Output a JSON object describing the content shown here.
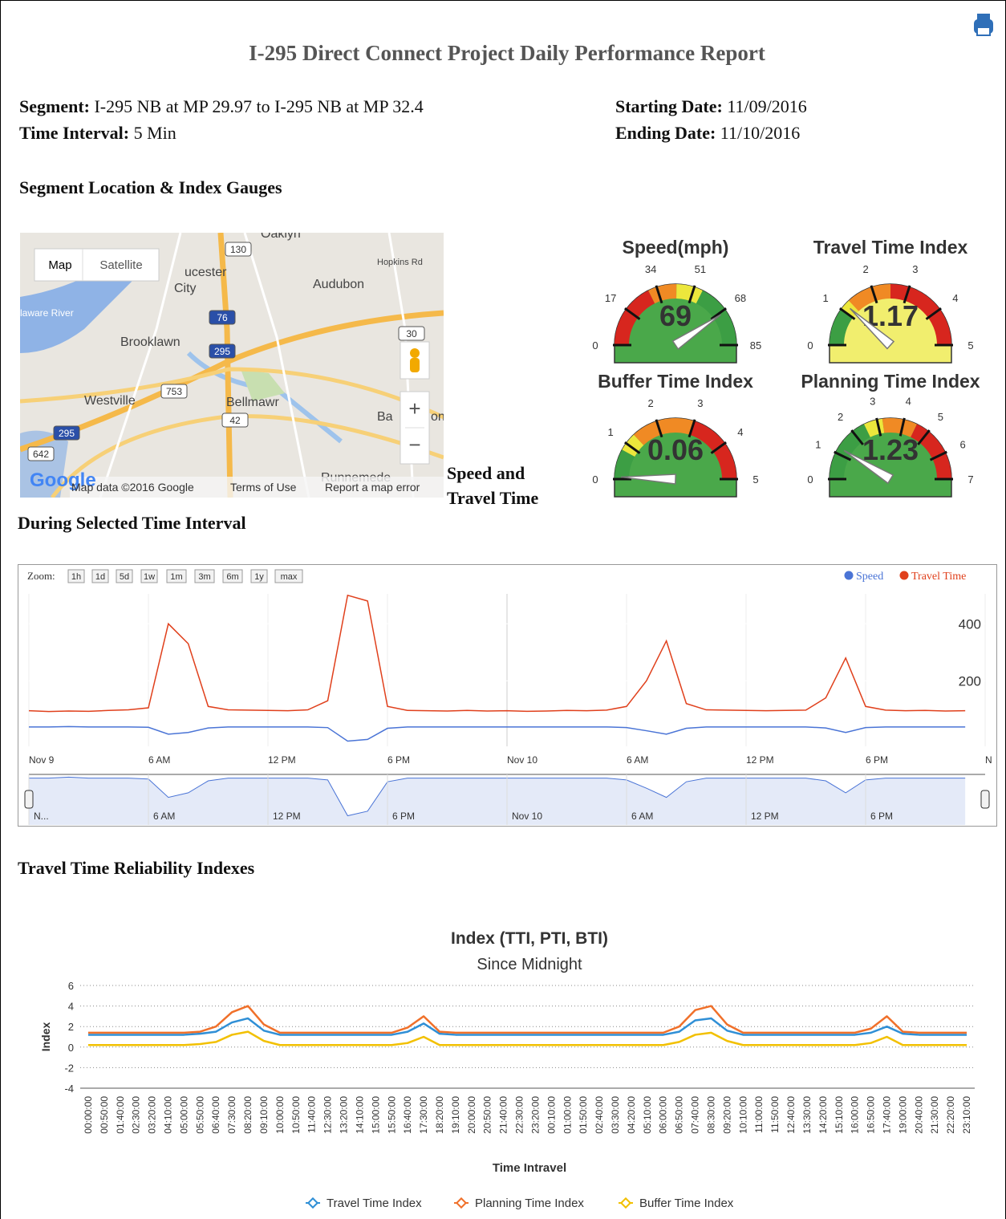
{
  "header": {
    "title": "I-295 Direct Connect Project Daily Performance Report"
  },
  "info": {
    "segment_label": "Segment:",
    "segment": "I-295 NB at MP 29.97 to I-295 NB at MP 32.4",
    "interval_label": "Time Interval:",
    "interval": "5 Min",
    "start_label": "Starting Date:",
    "start": "11/09/2016",
    "end_label": "Ending Date:",
    "end": "11/10/2016"
  },
  "sections": {
    "location": "Segment Location & Index Gauges",
    "speed_lines": [
      "Speed and",
      "Travel Time",
      "During Selected Time Interval"
    ],
    "reliability": "Travel Time Reliability Indexes"
  },
  "map": {
    "buttons": [
      "Map",
      "Satellite"
    ],
    "places": [
      "Oaklyn",
      "ucester",
      "City",
      "Audubon",
      "Hopkins Rd",
      "Brooklawn",
      "Westville",
      "Bellmawr",
      "Ba",
      "on",
      "Runnemede",
      "laware River"
    ],
    "shields": [
      "130",
      "76",
      "295",
      "30",
      "753",
      "42",
      "295",
      "642"
    ],
    "zoom": [
      "+",
      "−"
    ],
    "logo": "Google",
    "attribution": [
      "Map data ©2016 Google",
      "Terms of Use",
      "Report a map error"
    ]
  },
  "chart_data": [
    {
      "type": "gauge",
      "title": "Speed(mph)",
      "value": 69,
      "ylim": [
        0,
        85
      ],
      "yticks": [
        0,
        17,
        34,
        51,
        68,
        85
      ],
      "fill": "#4aa84a",
      "bands": [
        {
          "from": 0,
          "to": 30,
          "color": "#d7261e"
        },
        {
          "from": 30,
          "to": 43,
          "color": "#f08a24"
        },
        {
          "from": 43,
          "to": 55,
          "color": "#ece73c"
        },
        {
          "from": 55,
          "to": 85,
          "color": "#3c9e44"
        }
      ]
    },
    {
      "type": "gauge",
      "title": "Travel Time Index",
      "value": 1.17,
      "ylim": [
        0,
        5
      ],
      "yticks": [
        0,
        1,
        2,
        3,
        4,
        5
      ],
      "fill": "#f1ee6e",
      "bands": [
        {
          "from": 0,
          "to": 1,
          "color": "#3c9e44"
        },
        {
          "from": 1,
          "to": 1.3,
          "color": "#ece73c"
        },
        {
          "from": 1.3,
          "to": 2.5,
          "color": "#f08a24"
        },
        {
          "from": 2.5,
          "to": 5,
          "color": "#d7261e"
        }
      ]
    },
    {
      "type": "gauge",
      "title": "Buffer Time Index",
      "value": 0.06,
      "ylim": [
        0,
        5
      ],
      "yticks": [
        0,
        1,
        2,
        3,
        4,
        5
      ],
      "fill": "#4aa84a",
      "bands": [
        {
          "from": 0,
          "to": 0.8,
          "color": "#3c9e44"
        },
        {
          "from": 0.8,
          "to": 1.3,
          "color": "#ece73c"
        },
        {
          "from": 1.3,
          "to": 3,
          "color": "#f08a24"
        },
        {
          "from": 3,
          "to": 5,
          "color": "#d7261e"
        }
      ]
    },
    {
      "type": "gauge",
      "title": "Planning Time Index",
      "value": 1.23,
      "ylim": [
        0,
        7
      ],
      "yticks": [
        0,
        1,
        2,
        3,
        4,
        5,
        6,
        7
      ],
      "fill": "#4aa84a",
      "bands": [
        {
          "from": 0,
          "to": 2.5,
          "color": "#3c9e44"
        },
        {
          "from": 2.5,
          "to": 3.2,
          "color": "#ece73c"
        },
        {
          "from": 3.2,
          "to": 4.5,
          "color": "#f08a24"
        },
        {
          "from": 4.5,
          "to": 7,
          "color": "#d7261e"
        }
      ]
    },
    {
      "type": "stock",
      "zoom_label": "Zoom:",
      "zoom_buttons": [
        "1h",
        "1d",
        "5d",
        "1w",
        "1m",
        "3m",
        "6m",
        "1y",
        "max"
      ],
      "x": [
        0,
        1,
        2,
        3,
        4,
        5,
        6,
        7,
        8,
        9,
        10,
        11,
        12,
        13,
        14,
        15,
        16,
        17,
        18,
        19,
        20,
        21,
        22,
        23,
        24,
        25,
        26,
        27,
        28,
        29,
        30,
        31,
        32,
        33,
        34,
        35,
        36,
        37,
        38,
        39,
        40,
        41,
        42,
        43,
        44,
        45,
        46,
        47
      ],
      "xlim": [
        0,
        48
      ],
      "xticks": [
        {
          "value": 0,
          "label": "Nov 9"
        },
        {
          "value": 6,
          "label": "6 AM"
        },
        {
          "value": 12,
          "label": "12 PM"
        },
        {
          "value": 18,
          "label": "6 PM"
        },
        {
          "value": 24,
          "label": "Nov 10"
        },
        {
          "value": 30,
          "label": "6 AM"
        },
        {
          "value": 36,
          "label": "12 PM"
        },
        {
          "value": 42,
          "label": "6 PM"
        },
        {
          "value": 48,
          "label": "N"
        }
      ],
      "ylim": [
        -30,
        505
      ],
      "yticks": [
        200,
        400
      ],
      "y2lim": [
        10,
        450
      ],
      "series": [
        {
          "name": "Speed",
          "color": "#4a74d6",
          "axis": "y2",
          "values": [
            66,
            66,
            67,
            66,
            66,
            66,
            65,
            45,
            50,
            63,
            66,
            66,
            66,
            66,
            66,
            64,
            25,
            30,
            62,
            66,
            66,
            66,
            66,
            66,
            66,
            66,
            66,
            66,
            66,
            66,
            64,
            55,
            45,
            62,
            66,
            66,
            66,
            66,
            66,
            66,
            63,
            50,
            64,
            66,
            66,
            66,
            66,
            66
          ]
        },
        {
          "name": "Travel Time",
          "color": "#e0401c",
          "values": [
            95,
            92,
            94,
            93,
            96,
            98,
            105,
            400,
            330,
            110,
            98,
            97,
            96,
            95,
            98,
            130,
            500,
            480,
            110,
            96,
            95,
            94,
            96,
            94,
            95,
            93,
            94,
            96,
            95,
            97,
            110,
            200,
            340,
            120,
            98,
            97,
            96,
            95,
            96,
            97,
            140,
            280,
            110,
            97,
            95,
            96,
            94,
            95
          ]
        }
      ],
      "navigator": {
        "ylim": [
          15,
          70
        ],
        "xticks": [
          {
            "value": 0,
            "label": "N..."
          },
          {
            "value": 6,
            "label": "6 AM"
          },
          {
            "value": 12,
            "label": "12 PM"
          },
          {
            "value": 18,
            "label": "6 PM"
          },
          {
            "value": 24,
            "label": "Nov 10"
          },
          {
            "value": 30,
            "label": "6 AM"
          },
          {
            "value": 36,
            "label": "12 PM"
          },
          {
            "value": 42,
            "label": "6 PM"
          }
        ]
      }
    },
    {
      "type": "line",
      "title": "Index (TTI, PTI, BTI)",
      "subtitle": "Since Midnight",
      "ylabel": "Index",
      "xlabel": "Time Intravel",
      "ylim": [
        -4,
        6
      ],
      "yticks": [
        -4,
        -2,
        0,
        2,
        4,
        6
      ],
      "grid": true,
      "categories": [
        "00:00:00",
        "00:50:00",
        "01:40:00",
        "02:30:00",
        "03:20:00",
        "04:10:00",
        "05:00:00",
        "05:50:00",
        "06:40:00",
        "07:30:00",
        "08:20:00",
        "09:10:00",
        "10:00:00",
        "10:50:00",
        "11:40:00",
        "12:30:00",
        "13:20:00",
        "14:10:00",
        "15:00:00",
        "15:50:00",
        "16:40:00",
        "17:30:00",
        "18:20:00",
        "19:10:00",
        "20:00:00",
        "20:50:00",
        "21:40:00",
        "22:30:00",
        "23:20:00",
        "00:10:00",
        "01:00:00",
        "01:50:00",
        "02:40:00",
        "03:30:00",
        "04:20:00",
        "05:10:00",
        "06:00:00",
        "06:50:00",
        "07:40:00",
        "08:30:00",
        "09:20:00",
        "10:10:00",
        "11:00:00",
        "11:50:00",
        "12:40:00",
        "13:30:00",
        "14:20:00",
        "15:10:00",
        "16:00:00",
        "16:50:00",
        "17:40:00",
        "19:00:00",
        "20:40:00",
        "21:30:00",
        "22:20:00",
        "23:10:00"
      ],
      "series": [
        {
          "name": "Travel Time Index",
          "color": "#2f8fd6",
          "values": [
            1.2,
            1.2,
            1.2,
            1.2,
            1.2,
            1.2,
            1.2,
            1.3,
            1.5,
            2.4,
            2.8,
            1.6,
            1.2,
            1.2,
            1.2,
            1.2,
            1.2,
            1.2,
            1.2,
            1.2,
            1.5,
            2.3,
            1.3,
            1.2,
            1.2,
            1.2,
            1.2,
            1.2,
            1.2,
            1.2,
            1.2,
            1.2,
            1.2,
            1.2,
            1.2,
            1.2,
            1.2,
            1.5,
            2.6,
            2.8,
            1.6,
            1.2,
            1.2,
            1.2,
            1.2,
            1.2,
            1.2,
            1.2,
            1.2,
            1.4,
            2.0,
            1.3,
            1.2,
            1.2,
            1.2,
            1.2
          ]
        },
        {
          "name": "Planning Time Index",
          "color": "#f0702a",
          "values": [
            1.4,
            1.4,
            1.4,
            1.4,
            1.4,
            1.4,
            1.4,
            1.5,
            2.0,
            3.4,
            4.0,
            2.2,
            1.4,
            1.4,
            1.4,
            1.4,
            1.4,
            1.4,
            1.4,
            1.4,
            1.9,
            3.0,
            1.5,
            1.4,
            1.4,
            1.4,
            1.4,
            1.4,
            1.4,
            1.4,
            1.4,
            1.4,
            1.4,
            1.4,
            1.4,
            1.4,
            1.4,
            2.0,
            3.6,
            4.0,
            2.2,
            1.4,
            1.4,
            1.4,
            1.4,
            1.4,
            1.4,
            1.4,
            1.4,
            1.8,
            3.0,
            1.5,
            1.4,
            1.4,
            1.4,
            1.4
          ]
        },
        {
          "name": "Buffer Time Index",
          "color": "#f2c000",
          "values": [
            0.2,
            0.2,
            0.2,
            0.2,
            0.2,
            0.2,
            0.2,
            0.3,
            0.5,
            1.2,
            1.5,
            0.6,
            0.2,
            0.2,
            0.2,
            0.2,
            0.2,
            0.2,
            0.2,
            0.2,
            0.4,
            1.0,
            0.2,
            0.2,
            0.2,
            0.2,
            0.2,
            0.2,
            0.2,
            0.2,
            0.2,
            0.2,
            0.2,
            0.2,
            0.2,
            0.2,
            0.2,
            0.5,
            1.2,
            1.4,
            0.6,
            0.2,
            0.2,
            0.2,
            0.2,
            0.2,
            0.2,
            0.2,
            0.2,
            0.4,
            1.0,
            0.2,
            0.2,
            0.2,
            0.2,
            0.2
          ]
        }
      ]
    }
  ]
}
